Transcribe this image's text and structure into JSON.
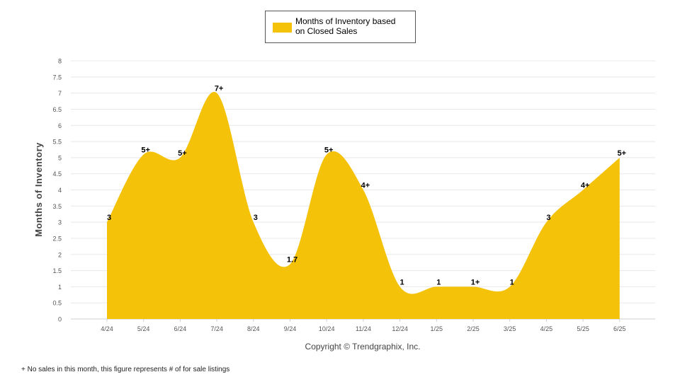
{
  "chart_data": {
    "type": "area",
    "legend": {
      "label_lines": [
        "Months of Inventory based",
        "on Closed Sales"
      ],
      "position": "top"
    },
    "ylabel": "Months of Inventory",
    "ylim": [
      0,
      8
    ],
    "yticks": [
      "0",
      "0.5",
      "1",
      "1.5",
      "2",
      "2.5",
      "3",
      "3.5",
      "4",
      "4.5",
      "5",
      "5.5",
      "6",
      "6.5",
      "7",
      "7.5",
      "8"
    ],
    "categories": [
      "4/24",
      "5/24",
      "6/24",
      "7/24",
      "8/24",
      "9/24",
      "10/24",
      "11/24",
      "12/24",
      "1/25",
      "2/25",
      "3/25",
      "4/25",
      "5/25",
      "6/25"
    ],
    "series": [
      {
        "name": "Months of Inventory based on Closed Sales",
        "values": [
          3,
          5.1,
          5,
          7,
          3,
          1.7,
          5.1,
          4,
          1,
          1,
          1,
          1,
          3,
          4,
          5
        ],
        "labels": [
          "3",
          "5+",
          "5+",
          "7+",
          "3",
          "1.7",
          "5+",
          "4+",
          "1",
          "1",
          "1+",
          "1",
          "3",
          "4+",
          "5+"
        ]
      }
    ],
    "grid": true,
    "colors": {
      "area": "#F5C20A",
      "grid": "#e8e8e8",
      "axis_text": "#555555"
    }
  },
  "copyright": "Copyright © Trendgraphix, Inc.",
  "footnote": "+ No sales in this month, this figure represents # of for sale listings"
}
